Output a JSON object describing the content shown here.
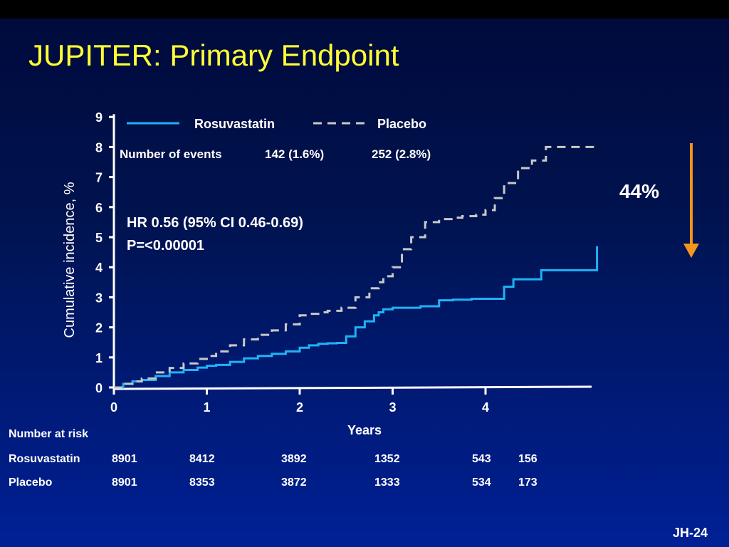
{
  "slide": {
    "title": "JUPITER: Primary Endpoint",
    "number": "JH-24"
  },
  "colors": {
    "title": "#ffff33",
    "rosuvastatin": "#1fb2f5",
    "placebo": "#c8c8c8",
    "arrow": "#f7941d"
  },
  "chart_data": {
    "type": "line",
    "xlabel": "Years",
    "ylabel": "Cumulative incidence, %",
    "xlim": [
      0,
      5
    ],
    "ylim": [
      0,
      9
    ],
    "xticks": [
      0,
      1,
      2,
      3,
      4
    ],
    "yticks": [
      0,
      1,
      2,
      3,
      4,
      5,
      6,
      7,
      8,
      9
    ],
    "legend": {
      "placement": "top",
      "events_label": "Number of events"
    },
    "series": [
      {
        "name": "Rosuvastatin",
        "style": "solid",
        "events": "142 (1.6%)",
        "x": [
          0,
          0.1,
          0.2,
          0.3,
          0.45,
          0.6,
          0.75,
          0.9,
          1.0,
          1.1,
          1.25,
          1.4,
          1.55,
          1.7,
          1.85,
          2.0,
          2.1,
          2.2,
          2.3,
          2.4,
          2.5,
          2.6,
          2.7,
          2.8,
          2.85,
          2.9,
          3.0,
          3.15,
          3.3,
          3.5,
          3.65,
          3.85,
          4.0,
          4.2,
          4.3,
          4.6,
          5.2
        ],
        "y": [
          0,
          0.12,
          0.2,
          0.25,
          0.38,
          0.5,
          0.58,
          0.66,
          0.72,
          0.75,
          0.85,
          0.97,
          1.05,
          1.12,
          1.2,
          1.32,
          1.4,
          1.45,
          1.47,
          1.48,
          1.7,
          2.0,
          2.2,
          2.4,
          2.5,
          2.6,
          2.65,
          2.65,
          2.7,
          2.9,
          2.92,
          2.95,
          2.95,
          3.35,
          3.6,
          3.9,
          4.7
        ]
      },
      {
        "name": "Placebo",
        "style": "dashed",
        "events": "252 (2.8%)",
        "x": [
          0,
          0.1,
          0.2,
          0.3,
          0.45,
          0.6,
          0.75,
          0.9,
          1.0,
          1.1,
          1.25,
          1.4,
          1.55,
          1.7,
          1.85,
          2.0,
          2.1,
          2.2,
          2.3,
          2.45,
          2.6,
          2.75,
          2.85,
          2.9,
          3.0,
          3.1,
          3.2,
          3.35,
          3.5,
          3.65,
          3.75,
          3.9,
          4.0,
          4.1,
          4.2,
          4.35,
          4.5,
          4.65,
          5.2
        ],
        "y": [
          0,
          0.12,
          0.2,
          0.3,
          0.5,
          0.65,
          0.8,
          0.95,
          1.05,
          1.2,
          1.4,
          1.6,
          1.75,
          1.9,
          2.1,
          2.4,
          2.45,
          2.5,
          2.55,
          2.65,
          3.0,
          3.3,
          3.5,
          3.7,
          4.0,
          4.6,
          5.0,
          5.5,
          5.6,
          5.65,
          5.7,
          5.75,
          5.9,
          6.3,
          6.8,
          7.3,
          7.55,
          8.0,
          8.0
        ]
      }
    ],
    "annotations": {
      "hr": "HR 0.56 (95% CI 0.46-0.69)",
      "p": "P=<0.00001",
      "reduction": "44%"
    }
  },
  "risk_table": {
    "title": "Number at risk",
    "rows": [
      {
        "label": "Rosuvastatin",
        "values": [
          "8901",
          "8412",
          "3892",
          "1352",
          "543",
          "156"
        ]
      },
      {
        "label": "Placebo",
        "values": [
          "8901",
          "8353",
          "3872",
          "1333",
          "534",
          "173"
        ]
      }
    ]
  }
}
